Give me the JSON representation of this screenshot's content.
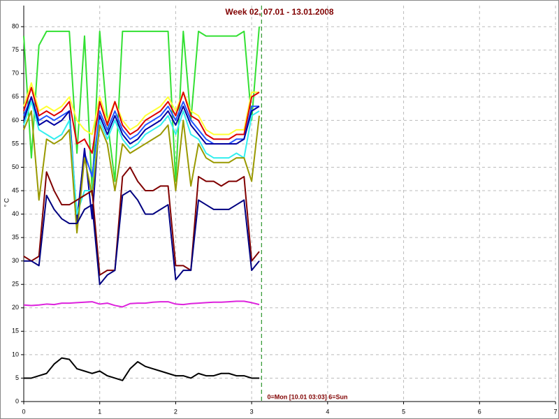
{
  "chart_data": {
    "type": "line",
    "title": "Week 02, 07.01 - 13.01.2008",
    "y_label": "° C",
    "annotation": "0=Mon [10.01 03:03] 6=Sun",
    "x": [
      0,
      0.1,
      0.2,
      0.3,
      0.4,
      0.5,
      0.6,
      0.7,
      0.8,
      0.9,
      1.0,
      1.1,
      1.2,
      1.3,
      1.4,
      1.5,
      1.6,
      1.7,
      1.8,
      1.9,
      2.0,
      2.1,
      2.2,
      2.3,
      2.4,
      2.5,
      2.6,
      2.7,
      2.8,
      2.9,
      3.0,
      3.1
    ],
    "xlim": [
      0,
      7
    ],
    "ylim": [
      0,
      84.5
    ],
    "xticks": [
      0,
      1,
      2,
      3,
      4,
      5,
      6,
      7
    ],
    "yticks": [
      0,
      5,
      10,
      15,
      20,
      25,
      30,
      35,
      40,
      45,
      50,
      55,
      60,
      65,
      70,
      75,
      80
    ],
    "grid": true,
    "marker_x": 3.13,
    "series": [
      {
        "color": "#33e033",
        "values": [
          78,
          52,
          76,
          79,
          79,
          79,
          79,
          53,
          78,
          45,
          79,
          60,
          47,
          79,
          79,
          79,
          79,
          79,
          79,
          79,
          47,
          79,
          60,
          79,
          78,
          78,
          78,
          78,
          78,
          79,
          60,
          80
        ]
      },
      {
        "color": "#ffff33",
        "values": [
          63,
          68,
          62,
          63,
          62,
          63,
          65,
          60,
          58,
          57,
          65,
          60,
          64,
          60,
          58,
          59,
          61,
          62,
          63,
          65,
          62,
          66,
          62,
          61,
          58,
          57,
          57,
          57,
          58,
          58,
          66,
          66
        ]
      },
      {
        "color": "#dd0000",
        "values": [
          62,
          67,
          61,
          62,
          61,
          62,
          64,
          55,
          56,
          53,
          64,
          59,
          64,
          59,
          57,
          58,
          60,
          61,
          62,
          64,
          61,
          66,
          61,
          60,
          57,
          56,
          56,
          56,
          57,
          57,
          65,
          66
        ]
      },
      {
        "color": "#2255ff",
        "values": [
          61,
          65,
          60,
          61,
          60,
          61,
          62,
          39,
          53,
          48,
          62,
          58,
          62,
          58,
          56,
          57,
          59,
          60,
          61,
          63,
          60,
          64,
          60,
          58,
          56,
          55,
          55,
          55,
          56,
          56,
          63,
          63
        ]
      },
      {
        "color": "#0000a0",
        "values": [
          60,
          65,
          59,
          60,
          59,
          60,
          62,
          38,
          54,
          39,
          61,
          57,
          61,
          57,
          55,
          56,
          58,
          59,
          60,
          62,
          59,
          63,
          59,
          57,
          55,
          55,
          55,
          55,
          55,
          56,
          62,
          63
        ]
      },
      {
        "color": "#33eeee",
        "values": [
          59,
          64,
          58,
          57,
          56,
          57,
          60,
          40,
          45,
          45,
          60,
          56,
          60,
          56,
          54,
          55,
          57,
          58,
          59,
          61,
          57,
          62,
          57,
          56,
          53,
          52,
          52,
          52,
          53,
          52,
          61,
          62
        ]
      },
      {
        "color": "#999900",
        "values": [
          58,
          62,
          43,
          56,
          55,
          56,
          58,
          36,
          52,
          44,
          59,
          55,
          45,
          55,
          53,
          54,
          55,
          56,
          57,
          59,
          45,
          60,
          46,
          55,
          52,
          51,
          51,
          51,
          52,
          52,
          47,
          61
        ]
      },
      {
        "color": "#800000",
        "values": [
          31,
          30,
          31,
          49,
          45,
          42,
          42,
          43,
          44,
          45,
          27,
          28,
          28,
          48,
          50,
          47,
          45,
          45,
          46,
          46,
          29,
          29,
          28,
          48,
          47,
          47,
          46,
          47,
          47,
          48,
          30,
          32
        ]
      },
      {
        "color": "#000080",
        "values": [
          30,
          30,
          29,
          44,
          41,
          39,
          38,
          38,
          41,
          42,
          25,
          27,
          28,
          44,
          45,
          43,
          40,
          40,
          41,
          42,
          26,
          28,
          28,
          43,
          42,
          41,
          41,
          41,
          42,
          43,
          28,
          30
        ]
      },
      {
        "color": "#dd22dd",
        "values": [
          20.6,
          20.5,
          20.6,
          20.8,
          20.7,
          21,
          21,
          21.1,
          21.2,
          21.3,
          20.8,
          21,
          20.5,
          20.2,
          20.9,
          21,
          21,
          21.2,
          21.3,
          21.3,
          20.8,
          20.7,
          20.9,
          21,
          21.1,
          21.2,
          21.2,
          21.3,
          21.4,
          21.4,
          21.1,
          20.7
        ]
      },
      {
        "color": "#000000",
        "values": [
          5,
          5,
          5.5,
          6,
          8,
          9.3,
          9,
          7,
          6.5,
          6,
          6.5,
          5.5,
          5,
          4.5,
          7,
          8.5,
          7.5,
          7,
          6.5,
          6,
          5.5,
          5.5,
          5,
          6,
          5.5,
          5.5,
          6,
          6,
          5.5,
          5.5,
          5,
          5
        ]
      }
    ]
  }
}
